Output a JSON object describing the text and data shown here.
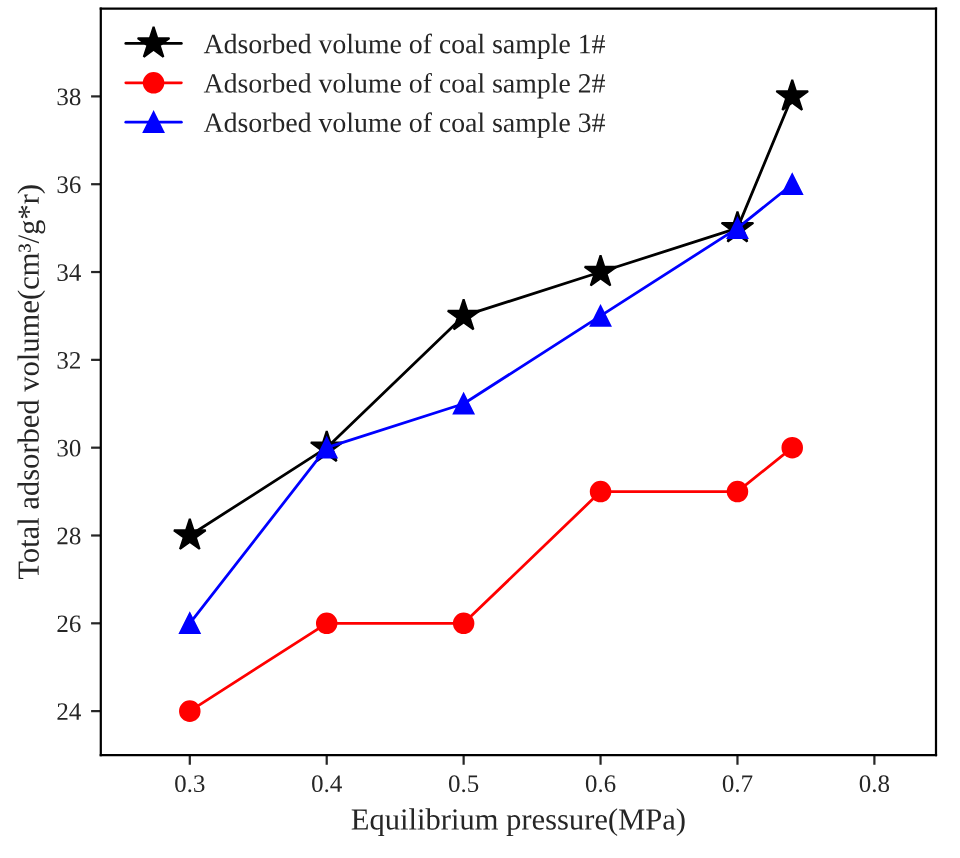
{
  "chart_data": {
    "type": "line",
    "xlabel": "Equilibrium pressure(MPa)",
    "ylabel": "Total adsorbed volume(cm³/g*r)",
    "x": [
      0.3,
      0.4,
      0.5,
      0.6,
      0.7,
      0.74
    ],
    "series": [
      {
        "name": "Adsorbed volume of coal sample 1#",
        "color": "#000000",
        "marker": "star",
        "values": [
          28,
          30,
          33,
          34,
          35,
          38
        ]
      },
      {
        "name": "Adsorbed volume of coal sample 2#",
        "color": "#ff0000",
        "marker": "circle",
        "values": [
          24,
          26,
          26,
          29,
          29,
          30
        ]
      },
      {
        "name": "Adsorbed volume of coal sample 3#",
        "color": "#0000ff",
        "marker": "triangle",
        "values": [
          26,
          30,
          31,
          33,
          35,
          36
        ]
      }
    ],
    "xlim": [
      0.235,
      0.845
    ],
    "xticks": [
      0.3,
      0.4,
      0.5,
      0.6,
      0.7,
      0.8
    ],
    "ylim": [
      23,
      40
    ],
    "yticks": [
      24,
      26,
      28,
      30,
      32,
      34,
      36,
      38
    ],
    "legend": "top left",
    "grid": false,
    "line_style": "solid"
  }
}
